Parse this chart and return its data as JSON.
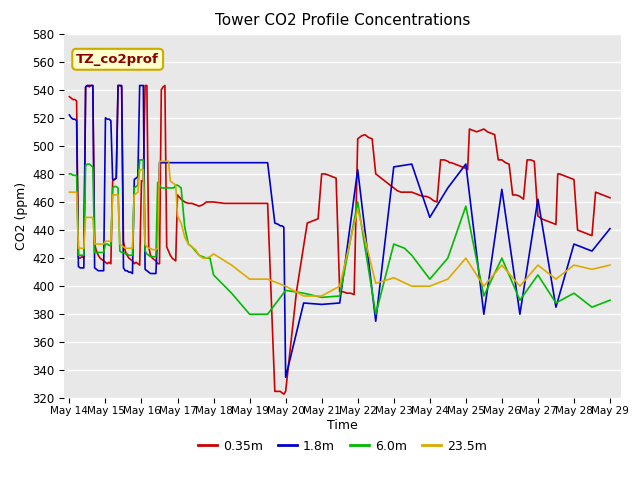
{
  "title": "Tower CO2 Profile Concentrations",
  "xlabel": "Time",
  "ylabel": "CO2 (ppm)",
  "ylim": [
    320,
    570
  ],
  "xlim": [
    13.85,
    29.3
  ],
  "annotation": "TZ_co2prof",
  "legend_labels": [
    "0.35m",
    "1.8m",
    "6.0m",
    "23.5m"
  ],
  "series_colors": {
    "red": "#cc0000",
    "blue": "#0000cc",
    "green": "#00bb00",
    "orange": "#ddaa00"
  },
  "red_x": [
    14.0,
    14.05,
    14.1,
    14.15,
    14.2,
    14.25,
    14.3,
    14.35,
    14.4,
    14.45,
    14.5,
    14.55,
    14.6,
    14.65,
    14.7,
    14.75,
    14.8,
    14.85,
    14.9,
    14.95,
    15.0,
    15.05,
    15.1,
    15.15,
    15.2,
    15.25,
    15.3,
    15.35,
    15.4,
    15.45,
    15.5,
    15.55,
    15.6,
    15.65,
    15.7,
    15.75,
    15.8,
    15.85,
    15.9,
    15.95,
    16.0,
    16.05,
    16.1,
    16.15,
    16.2,
    16.25,
    16.3,
    16.35,
    16.4,
    16.45,
    16.5,
    16.55,
    16.6,
    16.65,
    16.7,
    16.75,
    16.8,
    16.85,
    16.9,
    16.95,
    17.0,
    17.1,
    17.2,
    17.3,
    17.4,
    17.5,
    17.6,
    17.7,
    17.8,
    17.9,
    18.0,
    18.3,
    18.6,
    18.9,
    19.2,
    19.5,
    19.7,
    19.8,
    19.85,
    19.9,
    19.95,
    20.0,
    20.3,
    20.6,
    20.9,
    21.0,
    21.1,
    21.2,
    21.3,
    21.4,
    21.5,
    21.6,
    21.7,
    21.8,
    21.9,
    22.0,
    22.1,
    22.2,
    22.3,
    22.4,
    22.5,
    22.55,
    22.6,
    22.65,
    22.7,
    22.75,
    22.8,
    22.85,
    22.9,
    22.95,
    23.0,
    23.05,
    23.1,
    23.2,
    23.3,
    23.4,
    23.5,
    23.6,
    23.7,
    23.8,
    23.9,
    24.0,
    24.05,
    24.1,
    24.2,
    24.3,
    24.4,
    24.5,
    24.55,
    24.6,
    24.7,
    24.8,
    24.9,
    25.0,
    25.05,
    25.1,
    25.2,
    25.3,
    25.4,
    25.5,
    25.55,
    25.6,
    25.7,
    25.8,
    25.9,
    26.0,
    26.05,
    26.1,
    26.2,
    26.3,
    26.4,
    26.5,
    26.55,
    26.6,
    26.7,
    26.8,
    26.9,
    27.0,
    27.05,
    27.1,
    27.2,
    27.3,
    27.4,
    27.5,
    27.55,
    27.6,
    27.7,
    27.8,
    27.9,
    28.0,
    28.1,
    28.2,
    28.3,
    28.4,
    28.5,
    28.6,
    28.7,
    28.8,
    28.9,
    29.0
  ],
  "red_y": [
    535,
    534,
    533,
    533,
    532,
    420,
    420,
    421,
    420,
    542,
    543,
    542,
    543,
    543,
    430,
    425,
    422,
    420,
    419,
    418,
    417,
    416,
    417,
    416,
    475,
    476,
    477,
    543,
    543,
    542,
    432,
    425,
    422,
    420,
    419,
    418,
    416,
    417,
    416,
    415,
    475,
    475,
    543,
    543,
    428,
    422,
    420,
    419,
    418,
    416,
    416,
    540,
    542,
    543,
    428,
    425,
    422,
    420,
    419,
    418,
    465,
    462,
    460,
    459,
    459,
    458,
    457,
    458,
    460,
    460,
    460,
    459,
    459,
    459,
    459,
    459,
    325,
    325,
    325,
    324,
    323,
    325,
    396,
    445,
    448,
    480,
    480,
    479,
    478,
    477,
    396,
    396,
    395,
    395,
    394,
    505,
    507,
    508,
    506,
    505,
    480,
    479,
    478,
    477,
    476,
    475,
    474,
    473,
    472,
    471,
    470,
    469,
    468,
    467,
    467,
    467,
    467,
    466,
    465,
    464,
    464,
    463,
    462,
    461,
    460,
    490,
    490,
    489,
    488,
    488,
    487,
    486,
    485,
    484,
    483,
    512,
    511,
    510,
    511,
    512,
    511,
    510,
    509,
    508,
    490,
    490,
    489,
    488,
    487,
    465,
    465,
    464,
    463,
    462,
    490,
    490,
    489,
    450,
    449,
    448,
    447,
    446,
    445,
    444,
    480,
    480,
    479,
    478,
    477,
    476,
    440,
    439,
    438,
    437,
    436,
    467,
    466,
    465,
    464,
    463
  ],
  "blue_x": [
    14.0,
    14.05,
    14.1,
    14.15,
    14.2,
    14.25,
    14.3,
    14.35,
    14.4,
    14.45,
    14.5,
    14.55,
    14.6,
    14.65,
    14.7,
    14.75,
    14.8,
    14.85,
    14.9,
    14.95,
    15.0,
    15.05,
    15.1,
    15.15,
    15.2,
    15.25,
    15.3,
    15.35,
    15.4,
    15.45,
    15.5,
    15.55,
    15.6,
    15.65,
    15.7,
    15.75,
    15.8,
    15.85,
    15.9,
    15.95,
    16.0,
    16.05,
    16.1,
    16.15,
    16.2,
    16.25,
    16.3,
    16.35,
    16.4,
    16.45,
    16.5,
    16.55,
    16.6,
    16.65,
    16.7,
    16.75,
    16.8,
    16.85,
    16.9,
    16.95,
    17.0,
    17.1,
    17.2,
    17.3,
    17.4,
    17.5,
    17.6,
    17.7,
    17.8,
    17.9,
    18.0,
    18.5,
    19.0,
    19.5,
    19.7,
    19.8,
    19.85,
    19.9,
    19.95,
    20.0,
    20.5,
    21.0,
    21.5,
    22.0,
    22.5,
    23.0,
    23.5,
    24.0,
    24.5,
    25.0,
    25.5,
    26.0,
    26.5,
    27.0,
    27.5,
    28.0,
    28.5,
    29.0
  ],
  "blue_y": [
    522,
    520,
    519,
    519,
    518,
    414,
    413,
    413,
    413,
    542,
    543,
    543,
    543,
    543,
    413,
    412,
    411,
    411,
    411,
    411,
    520,
    519,
    519,
    518,
    476,
    476,
    477,
    543,
    543,
    543,
    413,
    411,
    411,
    410,
    410,
    409,
    476,
    477,
    478,
    543,
    543,
    543,
    412,
    411,
    410,
    409,
    409,
    409,
    409,
    440,
    488,
    488,
    488,
    488,
    488,
    488,
    488,
    488,
    488,
    488,
    488,
    488,
    488,
    488,
    488,
    488,
    488,
    488,
    488,
    488,
    488,
    488,
    488,
    488,
    445,
    444,
    443,
    443,
    442,
    335,
    388,
    387,
    388,
    483,
    375,
    485,
    487,
    449,
    470,
    487,
    380,
    469,
    380,
    462,
    385,
    430,
    425,
    441
  ],
  "green_x": [
    14.0,
    14.05,
    14.1,
    14.15,
    14.2,
    14.25,
    14.3,
    14.35,
    14.4,
    14.45,
    14.5,
    14.55,
    14.6,
    14.65,
    14.7,
    14.75,
    14.8,
    14.85,
    14.9,
    14.95,
    15.0,
    15.05,
    15.1,
    15.15,
    15.2,
    15.25,
    15.3,
    15.35,
    15.4,
    15.45,
    15.5,
    15.55,
    15.6,
    15.65,
    15.7,
    15.75,
    15.8,
    15.85,
    15.9,
    15.95,
    16.0,
    16.05,
    16.1,
    16.15,
    16.2,
    16.25,
    16.3,
    16.35,
    16.4,
    16.45,
    16.5,
    16.55,
    16.6,
    16.65,
    16.7,
    16.75,
    16.8,
    16.85,
    16.9,
    16.95,
    17.0,
    17.1,
    17.2,
    17.3,
    17.4,
    17.5,
    17.6,
    17.7,
    17.8,
    17.9,
    18.0,
    18.5,
    19.0,
    19.5,
    20.0,
    20.5,
    21.0,
    21.5,
    22.0,
    22.5,
    23.0,
    23.3,
    23.5,
    24.0,
    24.5,
    25.0,
    25.5,
    26.0,
    26.5,
    27.0,
    27.5,
    28.0,
    28.5,
    29.0
  ],
  "green_y": [
    480,
    480,
    479,
    479,
    479,
    422,
    422,
    422,
    422,
    486,
    487,
    487,
    486,
    485,
    424,
    424,
    424,
    424,
    424,
    424,
    430,
    430,
    429,
    429,
    470,
    471,
    471,
    470,
    425,
    424,
    424,
    423,
    423,
    422,
    422,
    422,
    470,
    471,
    472,
    490,
    490,
    490,
    425,
    423,
    422,
    421,
    421,
    421,
    421,
    474,
    472,
    470,
    470,
    470,
    470,
    470,
    470,
    470,
    470,
    472,
    472,
    470,
    442,
    430,
    428,
    425,
    422,
    421,
    420,
    420,
    408,
    395,
    380,
    380,
    397,
    395,
    392,
    393,
    460,
    380,
    430,
    427,
    422,
    405,
    420,
    457,
    393,
    420,
    390,
    408,
    388,
    395,
    385,
    390
  ],
  "orange_x": [
    14.0,
    14.05,
    14.1,
    14.15,
    14.2,
    14.25,
    14.3,
    14.35,
    14.4,
    14.45,
    14.5,
    14.55,
    14.6,
    14.65,
    14.7,
    14.75,
    14.8,
    14.85,
    14.9,
    14.95,
    15.0,
    15.05,
    15.1,
    15.15,
    15.2,
    15.25,
    15.3,
    15.35,
    15.4,
    15.45,
    15.5,
    15.55,
    15.6,
    15.65,
    15.7,
    15.75,
    15.8,
    15.85,
    15.9,
    15.95,
    16.0,
    16.05,
    16.1,
    16.15,
    16.2,
    16.25,
    16.3,
    16.35,
    16.4,
    16.45,
    16.5,
    16.55,
    16.6,
    16.65,
    16.7,
    16.75,
    16.8,
    16.85,
    16.9,
    16.95,
    17.0,
    17.1,
    17.2,
    17.3,
    17.4,
    17.5,
    17.6,
    17.7,
    17.8,
    17.9,
    18.0,
    18.5,
    19.0,
    19.5,
    20.0,
    20.5,
    21.0,
    21.5,
    22.0,
    22.5,
    23.0,
    23.5,
    24.0,
    24.5,
    25.0,
    25.5,
    26.0,
    26.5,
    27.0,
    27.5,
    28.0,
    28.5,
    29.0
  ],
  "orange_y": [
    467,
    467,
    467,
    467,
    467,
    427,
    427,
    427,
    427,
    449,
    449,
    449,
    449,
    449,
    430,
    430,
    430,
    430,
    430,
    430,
    432,
    432,
    432,
    432,
    465,
    465,
    465,
    465,
    430,
    429,
    428,
    427,
    427,
    427,
    427,
    427,
    465,
    466,
    467,
    483,
    483,
    483,
    430,
    428,
    427,
    427,
    426,
    426,
    426,
    427,
    489,
    489,
    489,
    489,
    489,
    489,
    475,
    474,
    473,
    472,
    450,
    445,
    435,
    430,
    428,
    426,
    422,
    420,
    420,
    421,
    423,
    415,
    405,
    405,
    400,
    393,
    393,
    400,
    455,
    402,
    406,
    400,
    400,
    405,
    420,
    400,
    415,
    400,
    415,
    405,
    415,
    412,
    415
  ]
}
